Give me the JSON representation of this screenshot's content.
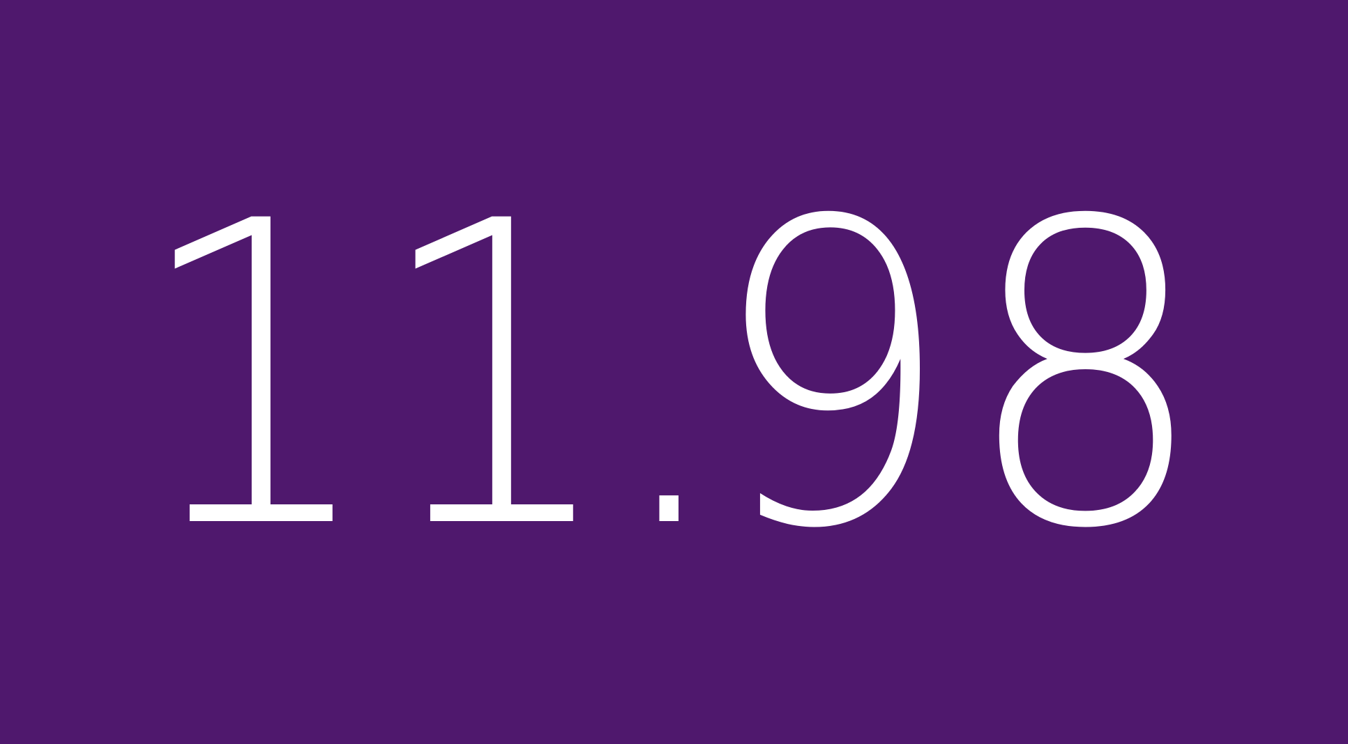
{
  "display": {
    "value": "11.98",
    "chars": [
      "1",
      "1",
      ".",
      "9",
      "8"
    ]
  },
  "colors": {
    "background": "#4f186d",
    "text": "#ffffff"
  }
}
